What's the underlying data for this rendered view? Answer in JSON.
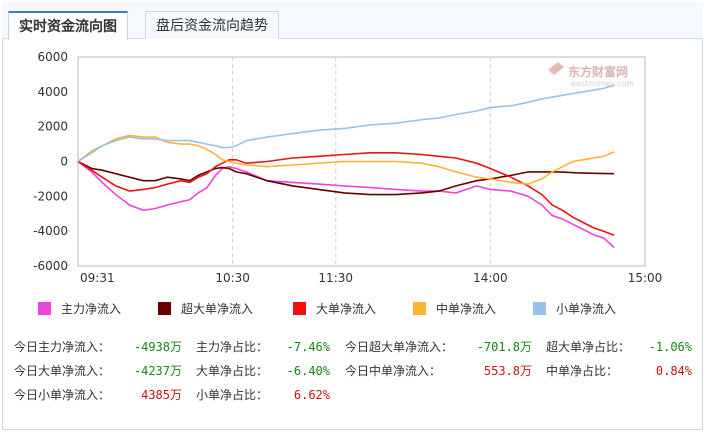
{
  "tabs": [
    {
      "label": "实时资金流向图",
      "active": true
    },
    {
      "label": "盘后资金流向趋势",
      "active": false
    }
  ],
  "watermark": {
    "brand": "东方财富网",
    "domain": "eastmoney.com"
  },
  "chart_data": {
    "type": "line",
    "title": "",
    "xlabel": "",
    "ylabel": "",
    "ylim": [
      -6000,
      6000
    ],
    "y_ticks": [
      "6000",
      "4000",
      "2000",
      "0",
      "-2000",
      "-4000",
      "-6000"
    ],
    "x_ticks": [
      "09:31",
      "10:30",
      "11:30",
      "14:00",
      "15:00"
    ],
    "grid": true,
    "legend_position": "bottom",
    "series": [
      {
        "name": "主力净流入",
        "color": "#ee44dd",
        "points": [
          [
            0,
            0
          ],
          [
            8,
            -600
          ],
          [
            14,
            -1200
          ],
          [
            22,
            -1900
          ],
          [
            30,
            -2500
          ],
          [
            38,
            -2800
          ],
          [
            45,
            -2700
          ],
          [
            52,
            -2500
          ],
          [
            60,
            -2300
          ],
          [
            65,
            -2200
          ],
          [
            70,
            -1800
          ],
          [
            75,
            -1500
          ],
          [
            80,
            -800
          ],
          [
            84,
            -400
          ],
          [
            88,
            -300
          ],
          [
            92,
            -400
          ],
          [
            98,
            -600
          ],
          [
            110,
            -1100
          ],
          [
            125,
            -1200
          ],
          [
            140,
            -1300
          ],
          [
            155,
            -1400
          ],
          [
            170,
            -1500
          ],
          [
            185,
            -1600
          ],
          [
            200,
            -1700
          ],
          [
            210,
            -1700
          ],
          [
            220,
            -1800
          ],
          [
            232,
            -1400
          ],
          [
            240,
            -1600
          ],
          [
            252,
            -1700
          ],
          [
            262,
            -2000
          ],
          [
            270,
            -2500
          ],
          [
            276,
            -3100
          ],
          [
            282,
            -3300
          ],
          [
            288,
            -3600
          ],
          [
            294,
            -3900
          ],
          [
            300,
            -4200
          ],
          [
            306,
            -4400
          ],
          [
            312,
            -4938
          ]
        ]
      },
      {
        "name": "超大单净流入",
        "color": "#660000",
        "points": [
          [
            0,
            0
          ],
          [
            8,
            -400
          ],
          [
            14,
            -500
          ],
          [
            22,
            -700
          ],
          [
            30,
            -900
          ],
          [
            38,
            -1100
          ],
          [
            45,
            -1100
          ],
          [
            52,
            -900
          ],
          [
            60,
            -1000
          ],
          [
            65,
            -1100
          ],
          [
            70,
            -800
          ],
          [
            75,
            -600
          ],
          [
            80,
            -400
          ],
          [
            84,
            -350
          ],
          [
            88,
            -400
          ],
          [
            92,
            -600
          ],
          [
            98,
            -700
          ],
          [
            110,
            -1100
          ],
          [
            125,
            -1400
          ],
          [
            140,
            -1600
          ],
          [
            155,
            -1800
          ],
          [
            170,
            -1900
          ],
          [
            185,
            -1900
          ],
          [
            200,
            -1800
          ],
          [
            210,
            -1700
          ],
          [
            220,
            -1400
          ],
          [
            232,
            -1100
          ],
          [
            240,
            -1000
          ],
          [
            252,
            -800
          ],
          [
            262,
            -600
          ],
          [
            270,
            -600
          ],
          [
            280,
            -600
          ],
          [
            290,
            -650
          ],
          [
            300,
            -680
          ],
          [
            312,
            -701.8
          ]
        ]
      },
      {
        "name": "大单净流入",
        "color": "#ee1111",
        "points": [
          [
            0,
            0
          ],
          [
            8,
            -500
          ],
          [
            14,
            -900
          ],
          [
            22,
            -1400
          ],
          [
            30,
            -1700
          ],
          [
            38,
            -1600
          ],
          [
            45,
            -1500
          ],
          [
            52,
            -1300
          ],
          [
            60,
            -1100
          ],
          [
            65,
            -1200
          ],
          [
            70,
            -900
          ],
          [
            75,
            -700
          ],
          [
            80,
            -300
          ],
          [
            84,
            -100
          ],
          [
            88,
            100
          ],
          [
            92,
            100
          ],
          [
            98,
            -100
          ],
          [
            110,
            0
          ],
          [
            125,
            200
          ],
          [
            140,
            300
          ],
          [
            155,
            400
          ],
          [
            170,
            500
          ],
          [
            185,
            500
          ],
          [
            200,
            400
          ],
          [
            210,
            300
          ],
          [
            220,
            200
          ],
          [
            232,
            -100
          ],
          [
            240,
            -400
          ],
          [
            252,
            -900
          ],
          [
            262,
            -1400
          ],
          [
            270,
            -1900
          ],
          [
            276,
            -2500
          ],
          [
            282,
            -2800
          ],
          [
            288,
            -3200
          ],
          [
            294,
            -3500
          ],
          [
            300,
            -3800
          ],
          [
            306,
            -4000
          ],
          [
            312,
            -4237
          ]
        ]
      },
      {
        "name": "中单净流入",
        "color": "#ffb233",
        "points": [
          [
            0,
            0
          ],
          [
            8,
            600
          ],
          [
            14,
            900
          ],
          [
            22,
            1300
          ],
          [
            30,
            1500
          ],
          [
            38,
            1400
          ],
          [
            45,
            1400
          ],
          [
            52,
            1100
          ],
          [
            60,
            1000
          ],
          [
            65,
            1000
          ],
          [
            70,
            900
          ],
          [
            75,
            700
          ],
          [
            80,
            400
          ],
          [
            84,
            100
          ],
          [
            88,
            0
          ],
          [
            92,
            -100
          ],
          [
            98,
            -200
          ],
          [
            110,
            -300
          ],
          [
            125,
            -200
          ],
          [
            140,
            -100
          ],
          [
            155,
            0
          ],
          [
            170,
            0
          ],
          [
            185,
            0
          ],
          [
            200,
            -100
          ],
          [
            210,
            -300
          ],
          [
            220,
            -600
          ],
          [
            232,
            -900
          ],
          [
            240,
            -1000
          ],
          [
            252,
            -1200
          ],
          [
            262,
            -1300
          ],
          [
            270,
            -1000
          ],
          [
            276,
            -600
          ],
          [
            282,
            -300
          ],
          [
            288,
            0
          ],
          [
            294,
            100
          ],
          [
            300,
            200
          ],
          [
            306,
            300
          ],
          [
            312,
            553.8
          ]
        ]
      },
      {
        "name": "小单净流入",
        "color": "#99c2ea",
        "points": [
          [
            0,
            0
          ],
          [
            8,
            500
          ],
          [
            14,
            900
          ],
          [
            22,
            1200
          ],
          [
            30,
            1400
          ],
          [
            38,
            1300
          ],
          [
            45,
            1300
          ],
          [
            52,
            1200
          ],
          [
            60,
            1200
          ],
          [
            65,
            1200
          ],
          [
            70,
            1100
          ],
          [
            75,
            1000
          ],
          [
            80,
            900
          ],
          [
            84,
            800
          ],
          [
            88,
            800
          ],
          [
            92,
            900
          ],
          [
            98,
            1200
          ],
          [
            110,
            1400
          ],
          [
            125,
            1600
          ],
          [
            140,
            1800
          ],
          [
            155,
            1900
          ],
          [
            170,
            2100
          ],
          [
            185,
            2200
          ],
          [
            200,
            2400
          ],
          [
            210,
            2500
          ],
          [
            220,
            2700
          ],
          [
            232,
            2900
          ],
          [
            240,
            3100
          ],
          [
            252,
            3200
          ],
          [
            262,
            3400
          ],
          [
            270,
            3600
          ],
          [
            276,
            3700
          ],
          [
            282,
            3800
          ],
          [
            288,
            3900
          ],
          [
            294,
            4000
          ],
          [
            300,
            4100
          ],
          [
            306,
            4200
          ],
          [
            312,
            4385
          ]
        ]
      }
    ]
  },
  "stats": [
    [
      {
        "label": "今日主力净流入：",
        "value": "-4938万",
        "sign": "neg"
      },
      {
        "label": "主力净占比：",
        "value": "-7.46%",
        "sign": "neg"
      },
      {
        "label": "今日超大单净流入：",
        "value": "-701.8万",
        "sign": "neg"
      },
      {
        "label": "超大单净占比：",
        "value": "-1.06%",
        "sign": "neg"
      }
    ],
    [
      {
        "label": "今日大单净流入：",
        "value": "-4237万",
        "sign": "neg"
      },
      {
        "label": "大单净占比：",
        "value": "-6.40%",
        "sign": "neg"
      },
      {
        "label": "今日中单净流入：",
        "value": "553.8万",
        "sign": "pos"
      },
      {
        "label": "中单净占比：",
        "value": "0.84%",
        "sign": "pos"
      }
    ],
    [
      {
        "label": "今日小单净流入：",
        "value": "4385万",
        "sign": "pos"
      },
      {
        "label": "小单净占比：",
        "value": "6.62%",
        "sign": "pos"
      }
    ]
  ]
}
